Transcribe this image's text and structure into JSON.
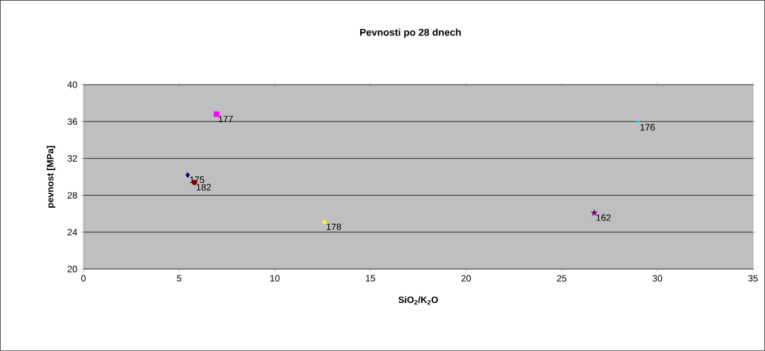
{
  "chart_data": {
    "type": "scatter",
    "title": "Pevnosti po 28 dnech",
    "xlabel": "SiO$_{2}$/K$_{2}$O",
    "ylabel": "pevnost [MPa]",
    "xlim": [
      0,
      35
    ],
    "xticks": [
      0,
      5,
      10,
      15,
      20,
      25,
      30,
      35
    ],
    "ylim": [
      20,
      40
    ],
    "yticks": [
      20,
      24,
      28,
      32,
      36,
      40
    ],
    "grid": "y",
    "series": [
      {
        "name": "175",
        "color": "#000080",
        "marker": "diamond",
        "x": [
          5.45
        ],
        "values": [
          30.2
        ]
      },
      {
        "name": "177",
        "color": "#ff00ff",
        "marker": "square",
        "x": [
          6.95
        ],
        "values": [
          36.8
        ]
      },
      {
        "name": "178",
        "color": "#ffff00",
        "marker": "triangle",
        "x": [
          12.6
        ],
        "values": [
          25.1
        ]
      },
      {
        "name": "176",
        "color": "#00ffff",
        "marker": "cross",
        "x": [
          29.0
        ],
        "values": [
          35.9
        ]
      },
      {
        "name": "162",
        "color": "#800080",
        "marker": "star",
        "x": [
          26.7
        ],
        "values": [
          26.1
        ]
      },
      {
        "name": "182",
        "color": "#800000",
        "marker": "circle",
        "x": [
          5.8
        ],
        "values": [
          29.4
        ]
      }
    ]
  }
}
